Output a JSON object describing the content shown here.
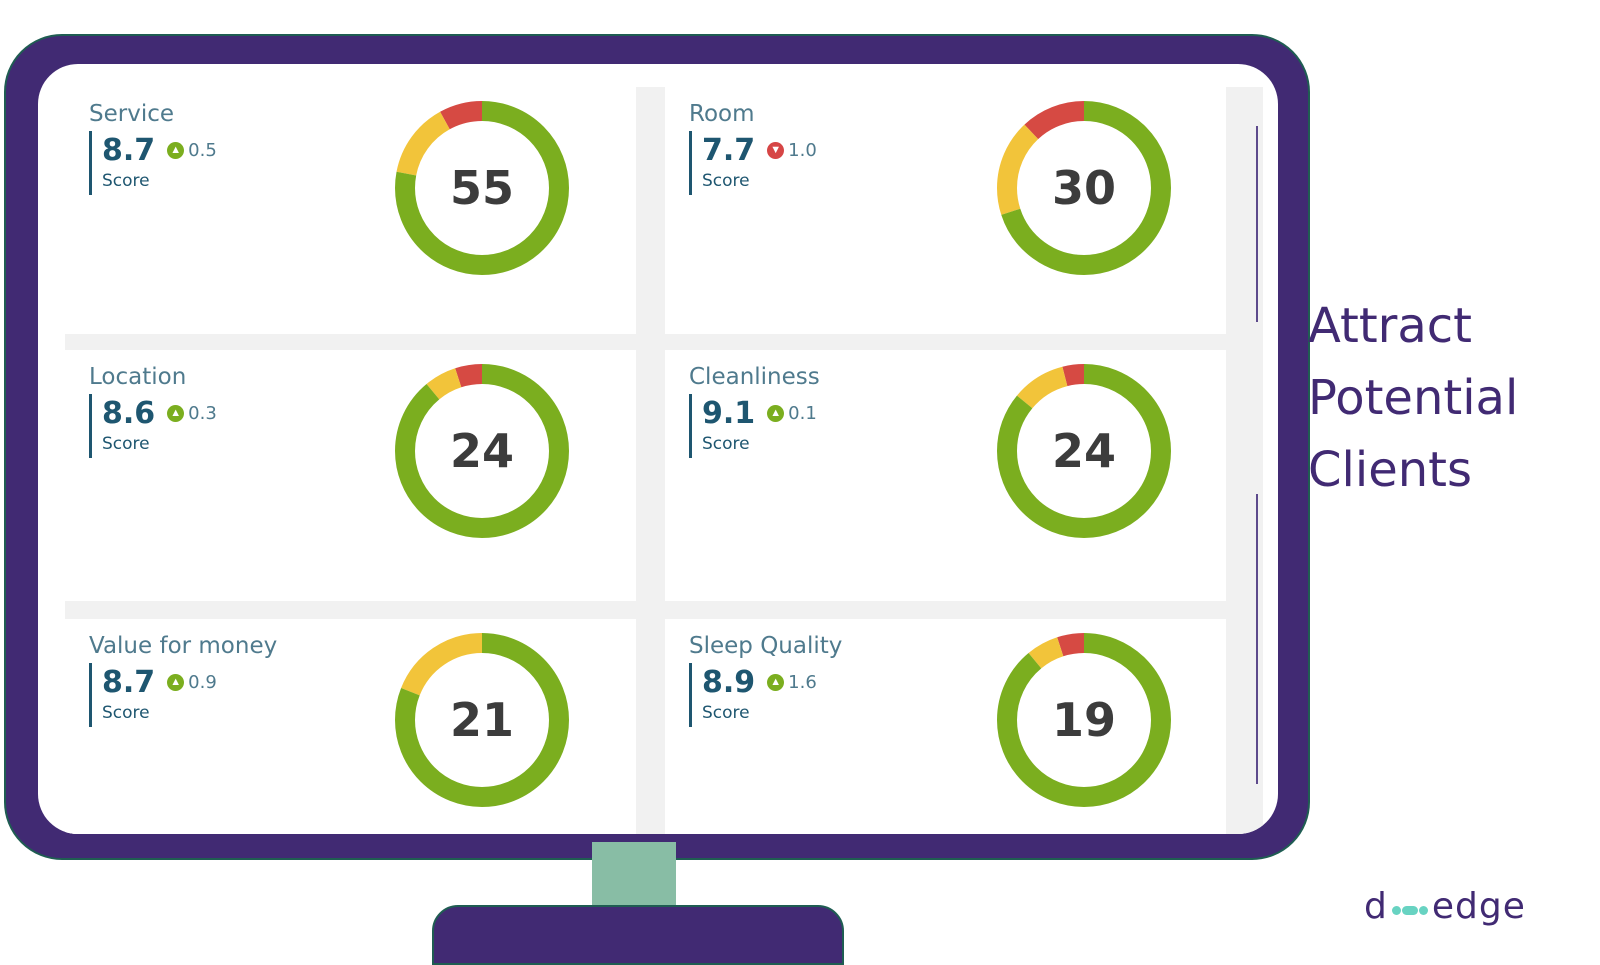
{
  "cards": [
    {
      "title": "Service",
      "score": "8.7",
      "delta": "0.5",
      "trend": "up",
      "score_label": "Score",
      "count": "55",
      "segments": {
        "green": 0.78,
        "yellow": 0.14,
        "red": 0.08
      }
    },
    {
      "title": "Room",
      "score": "7.7",
      "delta": "1.0",
      "trend": "down",
      "score_label": "Score",
      "count": "30",
      "segments": {
        "green": 0.7,
        "yellow": 0.18,
        "red": 0.12
      }
    },
    {
      "title": "Location",
      "score": "8.6",
      "delta": "0.3",
      "trend": "up",
      "score_label": "Score",
      "count": "24",
      "segments": {
        "green": 0.89,
        "yellow": 0.06,
        "red": 0.05
      }
    },
    {
      "title": "Cleanliness",
      "score": "9.1",
      "delta": "0.1",
      "trend": "up",
      "score_label": "Score",
      "count": "24",
      "segments": {
        "green": 0.86,
        "yellow": 0.1,
        "red": 0.04
      }
    },
    {
      "title": "Value for money",
      "score": "8.7",
      "delta": "0.9",
      "trend": "up",
      "score_label": "Score",
      "count": "21",
      "segments": {
        "green": 0.81,
        "yellow": 0.19,
        "red": 0.0
      }
    },
    {
      "title": "Sleep Quality",
      "score": "8.9",
      "delta": "1.6",
      "trend": "up",
      "score_label": "Score",
      "count": "19",
      "segments": {
        "green": 0.89,
        "yellow": 0.06,
        "red": 0.05
      }
    }
  ],
  "tagline": [
    "Attract",
    "Potential",
    "Clients"
  ],
  "logo": {
    "left": "d",
    "right": "edge"
  },
  "colors": {
    "green": "#7bae1f",
    "yellow": "#f2c43a",
    "red": "#d64a43",
    "frame": "#412a73",
    "stand": "#88bda5"
  }
}
